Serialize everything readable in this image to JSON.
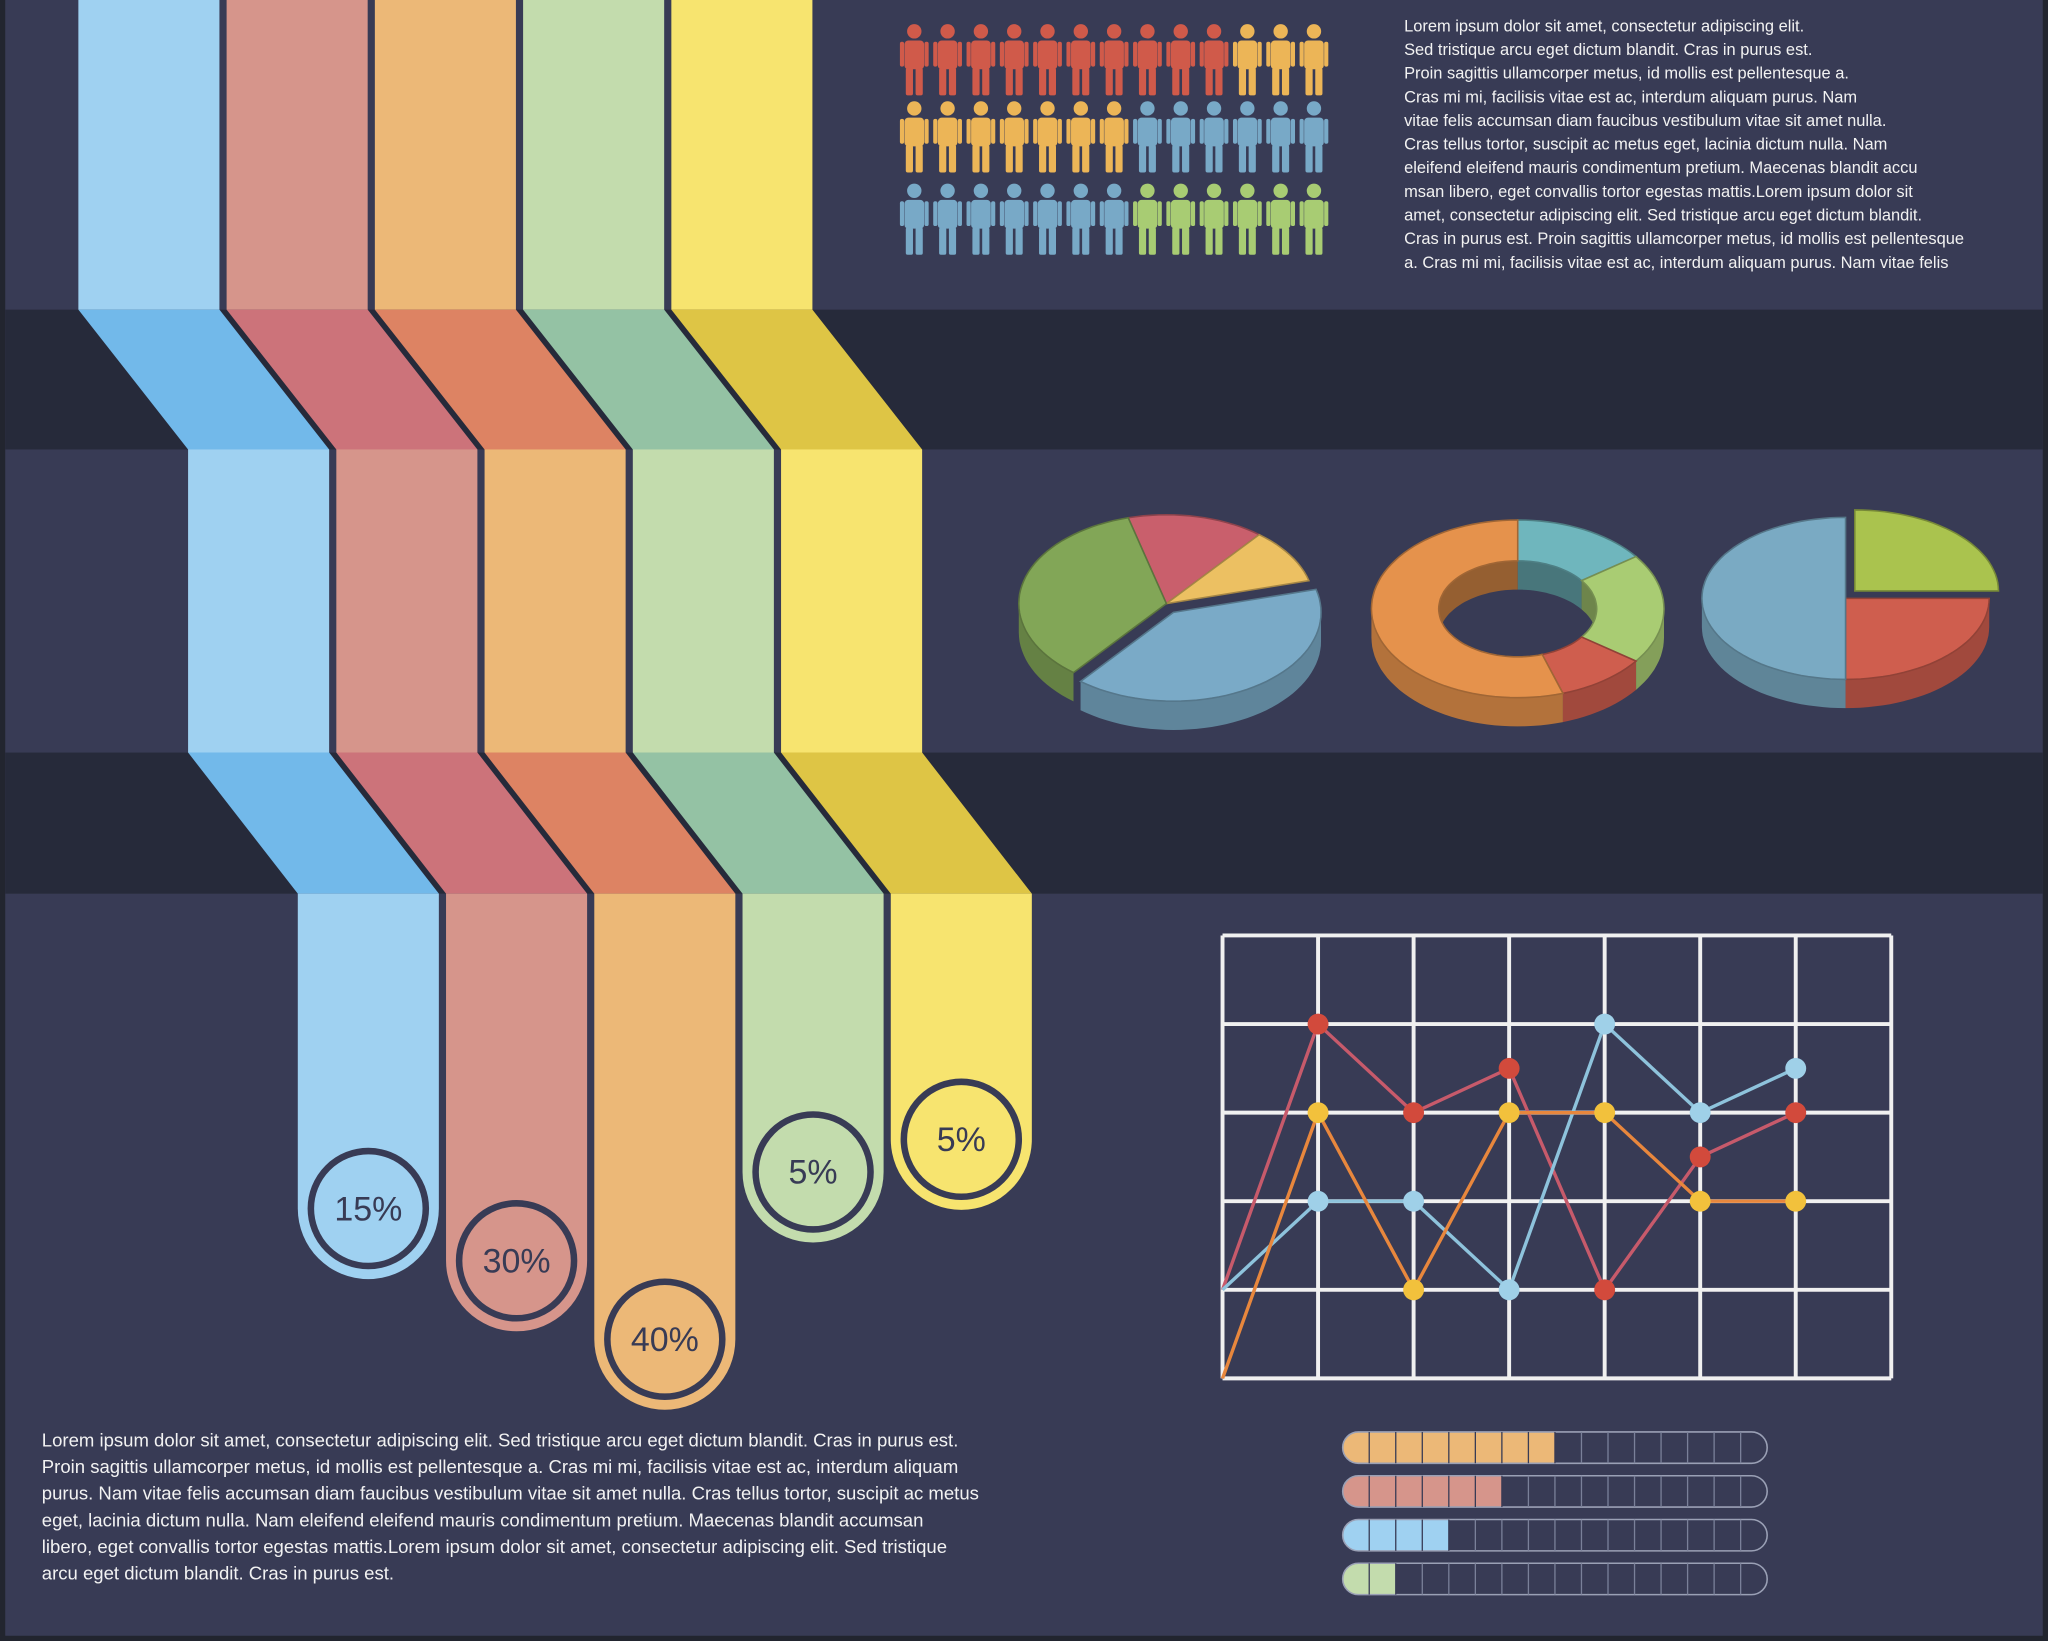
{
  "ribbons": [
    {
      "label": "15%",
      "color": "#9fd1f1",
      "shade": "#72b9ea"
    },
    {
      "label": "30%",
      "color": "#d6958b",
      "shade": "#cc737a"
    },
    {
      "label": "40%",
      "color": "#ecb877",
      "shade": "#dd8363"
    },
    {
      "label": "5%",
      "color": "#c3dcad",
      "shade": "#94c2a4"
    },
    {
      "label": "5%",
      "color": "#f7e46f",
      "shade": "#dec545"
    }
  ],
  "people": {
    "columns": 13,
    "groups": [
      {
        "count": 10,
        "color": "#d05a4a"
      },
      {
        "count": 10,
        "color": "#ecb557"
      },
      {
        "count": 13,
        "color": "#78a9c7"
      },
      {
        "count": 6,
        "color": "#a8cc73"
      }
    ]
  },
  "text_top": [
    "Lorem ipsum dolor sit amet, consectetur adipiscing elit.",
    "Sed tristique arcu eget dictum blandit. Cras in purus est.",
    "Proin sagittis ullamcorper metus, id mollis est pellentesque a.",
    "Cras mi mi, facilisis vitae est ac, interdum aliquam purus. Nam",
    "vitae felis accumsan diam faucibus vestibulum vitae sit amet nulla.",
    "Cras tellus tortor, suscipit ac metus eget, lacinia dictum nulla. Nam",
    "eleifend eleifend mauris condimentum pretium. Maecenas blandit accu",
    "msan libero, eget convallis tortor egestas mattis.Lorem ipsum dolor sit",
    "amet, consectetur adipiscing elit. Sed tristique arcu eget dictum blandit.",
    "Cras in purus est. Proin sagittis ullamcorper metus, id mollis est pellentesque",
    "a. Cras mi mi, facilisis vitae est ac, interdum aliquam purus. Nam vitae felis"
  ],
  "text_bottom": [
    "Lorem ipsum dolor sit amet, consectetur adipiscing elit. Sed tristique arcu eget dictum blandit. Cras in purus est.",
    "Proin sagittis ullamcorper metus, id mollis est pellentesque a. Cras mi mi, facilisis vitae est ac, interdum aliquam",
    "purus. Nam vitae felis accumsan diam faucibus vestibulum vitae sit amet nulla. Cras tellus tortor, suscipit ac metus",
    "eget, lacinia dictum nulla. Nam eleifend eleifend mauris condimentum pretium. Maecenas blandit accumsan",
    "libero, eget convallis tortor egestas mattis.Lorem ipsum dolor sit amet, consectetur adipiscing elit. Sed tristique",
    "arcu eget dictum blandit. Cras in purus est."
  ],
  "pies": [
    {
      "type": "pie",
      "values": [
        15,
        10,
        40,
        35
      ],
      "colors": [
        "#c95f6c",
        "#ecc062",
        "#7aaac7",
        "#82a657"
      ]
    },
    {
      "type": "donut",
      "values": [
        15,
        20,
        10,
        55
      ],
      "colors": [
        "#6fb6bd",
        "#a9cc73",
        "#cf5e4e",
        "#e5924c"
      ]
    },
    {
      "type": "pie",
      "values": [
        25,
        25,
        50
      ],
      "colors": [
        "#aac34e",
        "#cf5e4e",
        "#7aaac3"
      ]
    }
  ],
  "line_chart": {
    "type": "line",
    "x": [
      0,
      1,
      2,
      3,
      4,
      5,
      6
    ],
    "xlim": [
      0,
      7
    ],
    "xticks": [
      0,
      1,
      2,
      3,
      4,
      5,
      6,
      7
    ],
    "ylim": [
      0,
      5
    ],
    "yticks": [
      0,
      1,
      2,
      3,
      4,
      5
    ],
    "series": [
      {
        "color": "#c75a6b",
        "marker_color": "#d24a3c",
        "values": [
          1,
          4,
          3,
          3.5,
          1,
          2.5,
          3
        ]
      },
      {
        "color": "#8ec3dc",
        "marker_color": "#9fd0e8",
        "values": [
          1,
          2,
          2,
          1,
          4,
          3,
          3.5
        ]
      },
      {
        "color": "#e8873d",
        "marker_color": "#f2c13c",
        "values": [
          0,
          3,
          1,
          3,
          3,
          2,
          2
        ]
      }
    ]
  },
  "progress": {
    "max": 16,
    "bars": [
      {
        "value": 8,
        "color": "#ecb877"
      },
      {
        "value": 6,
        "color": "#d6958b"
      },
      {
        "value": 4,
        "color": "#9fd1f1"
      },
      {
        "value": 2,
        "color": "#c3dcad"
      }
    ]
  }
}
